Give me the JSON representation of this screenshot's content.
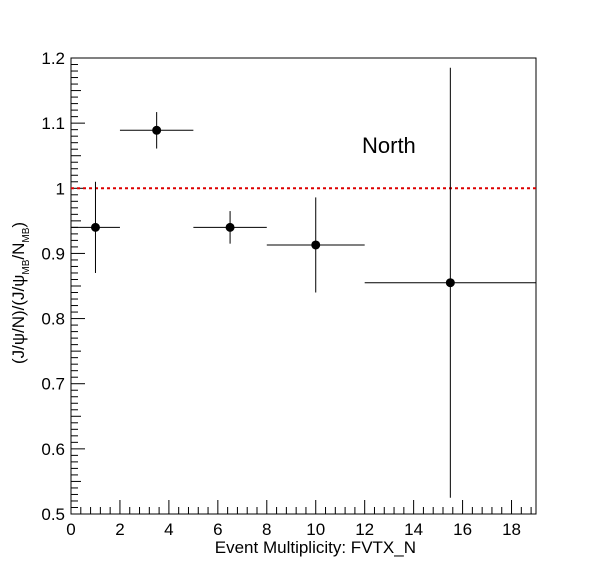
{
  "chart_data": {
    "type": "scatter",
    "xlabel": "Event Multiplicity: FVTX_N",
    "ylabel": {
      "parts": [
        "(J/ψ/N)/(J/ψ",
        "MB",
        "/N",
        "MB",
        ")"
      ]
    },
    "annotation": "North",
    "xlim": [
      0,
      19
    ],
    "ylim": [
      0.5,
      1.2
    ],
    "x_major_ticks": [
      0,
      2,
      4,
      6,
      8,
      10,
      12,
      14,
      16,
      18
    ],
    "x_tick_labels": [
      "0",
      "2",
      "4",
      "6",
      "8",
      "10",
      "12",
      "14",
      "16",
      "18"
    ],
    "y_major_ticks": [
      0.5,
      0.6,
      0.7,
      0.8,
      0.9,
      1.0,
      1.1,
      1.2
    ],
    "y_tick_labels": [
      "0.5",
      "0.6",
      "0.7",
      "0.8",
      "0.9",
      "1",
      "1.1",
      "1.2"
    ],
    "reference_line": {
      "y": 1.0,
      "color": "#dd0000",
      "style": "dotted"
    },
    "grid": false,
    "points": [
      {
        "x": 1.0,
        "y": 0.94,
        "xerr_low": 1.0,
        "xerr_high": 1.0,
        "yerr_low": 0.07,
        "yerr_high": 0.07
      },
      {
        "x": 3.5,
        "y": 1.089,
        "xerr_low": 1.5,
        "xerr_high": 1.5,
        "yerr_low": 0.028,
        "yerr_high": 0.028
      },
      {
        "x": 6.5,
        "y": 0.94,
        "xerr_low": 1.5,
        "xerr_high": 1.5,
        "yerr_low": 0.025,
        "yerr_high": 0.025
      },
      {
        "x": 10.0,
        "y": 0.913,
        "xerr_low": 2.0,
        "xerr_high": 2.0,
        "yerr_low": 0.073,
        "yerr_high": 0.073
      },
      {
        "x": 15.5,
        "y": 0.855,
        "xerr_low": 3.5,
        "xerr_high": 3.5,
        "yerr_low": 0.33,
        "yerr_high": 0.33
      }
    ],
    "marker_color": "#000000"
  }
}
